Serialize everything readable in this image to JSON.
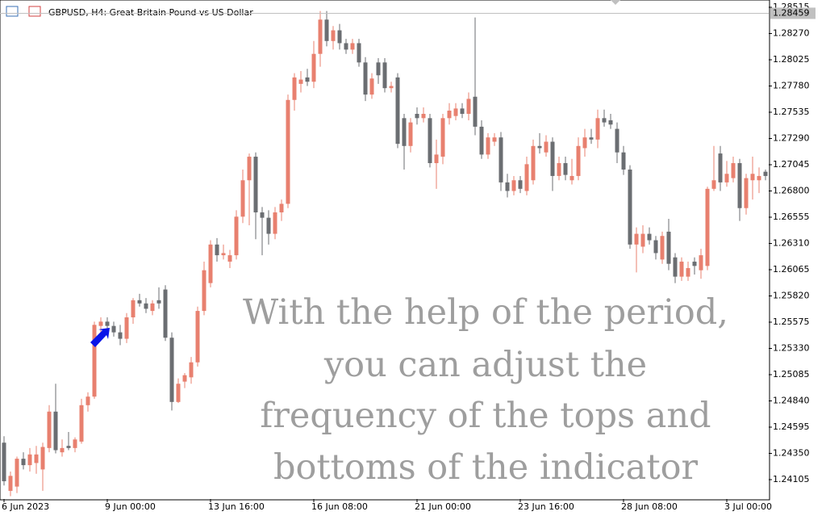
{
  "chart_data": {
    "type": "candlestick",
    "title": "GBPUSD, H4:  Great Britain Pound vs US Dollar",
    "annotation": [
      "With the help of the period,",
      "you can adjust the",
      "frequency of the tops and",
      "bottoms of the indicator"
    ],
    "last_price": 1.28459,
    "up_color": "#e8806f",
    "down_color": "#6b6e72",
    "ylim": [
      1.23924,
      1.28583
    ],
    "yticks": [
      1.28515,
      {
        "value": 1.2827,
        "label": "1.28270"
      },
      1.28025,
      {
        "value": 1.2778,
        "label": "1.27780"
      },
      1.27535,
      {
        "value": 1.2729,
        "label": "1.27290"
      },
      1.27045,
      {
        "value": 1.268,
        "label": "1.26800"
      },
      1.26555,
      {
        "value": 1.2631,
        "label": "1.26310"
      },
      1.26065,
      {
        "value": 1.2582,
        "label": "1.25820"
      },
      1.25575,
      {
        "value": 1.2533,
        "label": "1.25330"
      },
      1.25085,
      {
        "value": 1.2484,
        "label": "1.24840"
      },
      1.24595,
      {
        "value": 1.2435,
        "label": "1.24350"
      },
      1.24105
    ],
    "categories": [
      "6 Jun 2023",
      null,
      null,
      null,
      null,
      null,
      null,
      null,
      null,
      null,
      null,
      null,
      null,
      null,
      null,
      null,
      "9 Jun 00:00",
      null,
      null,
      null,
      null,
      null,
      null,
      null,
      null,
      null,
      null,
      null,
      null,
      null,
      null,
      null,
      "13 Jun 16:00",
      null,
      null,
      null,
      null,
      null,
      null,
      null,
      null,
      null,
      null,
      null,
      null,
      null,
      null,
      null,
      "16 Jun 08:00",
      null,
      null,
      null,
      null,
      null,
      null,
      null,
      null,
      null,
      null,
      null,
      null,
      null,
      null,
      null,
      "21 Jun 00:00",
      null,
      null,
      null,
      null,
      null,
      null,
      null,
      null,
      null,
      null,
      null,
      null,
      null,
      null,
      null,
      "23 Jun 16:00",
      null,
      null,
      null,
      null,
      null,
      null,
      null,
      null,
      null,
      null,
      null,
      null,
      null,
      null,
      null,
      "28 Jun 08:00",
      null,
      null,
      null,
      null,
      null,
      null,
      null,
      null,
      null,
      null,
      null,
      null,
      null,
      null,
      null,
      "3 Jul 00:00",
      null,
      null,
      null,
      null,
      null,
      null
    ],
    "open": [
      1.2445,
      1.24,
      1.2404,
      1.243,
      1.2424,
      1.2426,
      1.242,
      1.244,
      1.2474,
      1.2436,
      1.2442,
      1.244,
      1.2446,
      1.248,
      1.2488,
      1.2554,
      1.2558,
      1.2554,
      1.2548,
      1.2542,
      1.2562,
      1.2578,
      1.2575,
      1.2568,
      1.2578,
      1.2588,
      1.2543,
      1.2483,
      1.2502,
      1.2506,
      1.252,
      1.2568,
      1.2594,
      1.263,
      1.262,
      1.2614,
      1.262,
      1.2656,
      1.269,
      1.2712,
      1.266,
      1.2655,
      1.264,
      1.266,
      1.2668,
      1.2765,
      1.278,
      1.2786,
      1.2782,
      1.2808,
      1.284,
      1.282,
      1.283,
      1.2818,
      1.2812,
      1.2818,
      1.28,
      1.277,
      1.28,
      1.28,
      1.2776,
      1.2786,
      1.2748,
      1.2722,
      1.2752,
      1.2748,
      1.2748,
      1.2706,
      1.2712,
      1.2748,
      1.275,
      1.2757,
      1.2752,
      1.2768,
      1.274,
      1.2714,
      1.2726,
      1.273,
      1.2688,
      1.268,
      1.269,
      1.268,
      1.269,
      1.2722,
      1.2716,
      1.2726,
      1.2694,
      1.2706,
      1.269,
      1.2694,
      1.272,
      1.273,
      1.2728,
      1.2748,
      1.2746,
      1.2738,
      1.2716,
      1.27,
      1.263,
      1.2628,
      1.264,
      1.2634,
      1.2616,
      1.2642,
      1.2618,
      1.26,
      1.26,
      1.2614,
      1.2606,
      1.261,
      1.2682,
      1.2715,
      1.2688,
      1.2692,
      1.2706,
      1.2664,
      1.269,
      1.269,
      1.2698
    ],
    "high": [
      1.2451,
      1.2418,
      1.2432,
      1.2436,
      1.244,
      1.2442,
      1.2445,
      1.248,
      1.25,
      1.2448,
      1.2455,
      1.245,
      1.2486,
      1.2492,
      1.2558,
      1.2562,
      1.2562,
      1.2558,
      1.2555,
      1.2566,
      1.258,
      1.2584,
      1.258,
      1.2578,
      1.259,
      1.2592,
      1.2548,
      1.2505,
      1.251,
      1.2525,
      1.2572,
      1.2614,
      1.2634,
      1.2636,
      1.263,
      1.2625,
      1.2662,
      1.27,
      1.2715,
      1.2716,
      1.2665,
      1.2662,
      1.2665,
      1.2672,
      1.277,
      1.279,
      1.2792,
      1.2794,
      1.282,
      1.2848,
      1.2848,
      1.2834,
      1.2836,
      1.2822,
      1.2822,
      1.2822,
      1.2805,
      1.279,
      1.2804,
      1.2804,
      1.2782,
      1.279,
      1.2752,
      1.2748,
      1.2758,
      1.2758,
      1.2752,
      1.2728,
      1.2752,
      1.2762,
      1.2762,
      1.2762,
      1.2772,
      1.2842,
      1.2746,
      1.2734,
      1.2734,
      1.2735,
      1.2696,
      1.2694,
      1.2694,
      1.2712,
      1.2728,
      1.2734,
      1.2732,
      1.273,
      1.2712,
      1.2712,
      1.271,
      1.273,
      1.2738,
      1.2738,
      1.2756,
      1.2756,
      1.2752,
      1.2744,
      1.2722,
      1.2704,
      1.2646,
      1.2648,
      1.2646,
      1.2638,
      1.2642,
      1.2654,
      1.2622,
      1.2618,
      1.2614,
      1.2618,
      1.2626,
      1.2684,
      1.2722,
      1.2722,
      1.2708,
      1.2712,
      1.271,
      1.2696,
      1.2712,
      1.2702,
      1.27
    ],
    "low": [
      1.2405,
      1.2395,
      1.2398,
      1.242,
      1.2418,
      1.2416,
      1.24,
      1.2436,
      1.2435,
      1.2432,
      1.2438,
      1.2436,
      1.2444,
      1.2474,
      1.2486,
      1.2548,
      1.255,
      1.2544,
      1.2536,
      1.2538,
      1.2556,
      1.2572,
      1.2566,
      1.2564,
      1.257,
      1.254,
      1.2475,
      1.2482,
      1.2496,
      1.25,
      1.2516,
      1.2564,
      1.259,
      1.2614,
      1.2616,
      1.2608,
      1.2616,
      1.265,
      1.2648,
      1.2635,
      1.262,
      1.263,
      1.2635,
      1.2652,
      1.2664,
      1.2755,
      1.2772,
      1.2778,
      1.2776,
      1.2796,
      1.2815,
      1.2812,
      1.2812,
      1.2808,
      1.2808,
      1.2796,
      1.2764,
      1.2766,
      1.278,
      1.2772,
      1.2772,
      1.272,
      1.27,
      1.2716,
      1.2742,
      1.2744,
      1.2702,
      1.2682,
      1.2705,
      1.2742,
      1.2746,
      1.2748,
      1.2746,
      1.2732,
      1.271,
      1.271,
      1.2722,
      1.268,
      1.2674,
      1.2676,
      1.2678,
      1.2676,
      1.2686,
      1.2715,
      1.2712,
      1.268,
      1.269,
      1.269,
      1.2686,
      1.269,
      1.2712,
      1.2724,
      1.272,
      1.274,
      1.2738,
      1.2706,
      1.2695,
      1.2626,
      1.2604,
      1.2622,
      1.263,
      1.2616,
      1.2612,
      1.2606,
      1.2594,
      1.2596,
      1.2596,
      1.2602,
      1.2598,
      1.2606,
      1.268,
      1.268,
      1.2684,
      1.2688,
      1.2652,
      1.2658,
      1.2672,
      1.2678,
      1.269
    ],
    "close": [
      1.2409,
      1.2414,
      1.243,
      1.2424,
      1.2434,
      1.2434,
      1.2441,
      1.2474,
      1.2438,
      1.244,
      1.244,
      1.2448,
      1.248,
      1.2488,
      1.2555,
      1.2558,
      1.2554,
      1.2548,
      1.2542,
      1.2562,
      1.2578,
      1.2575,
      1.257,
      1.2575,
      1.2575,
      1.2543,
      1.2483,
      1.25,
      1.2508,
      1.252,
      1.2568,
      1.2606,
      1.263,
      1.262,
      1.2622,
      1.262,
      1.2656,
      1.269,
      1.2712,
      1.266,
      1.2655,
      1.264,
      1.266,
      1.2668,
      1.2765,
      1.2786,
      1.2784,
      1.2782,
      1.2808,
      1.284,
      1.282,
      1.283,
      1.2818,
      1.2812,
      1.2818,
      1.28,
      1.277,
      1.2785,
      1.2788,
      1.2776,
      1.2778,
      1.2724,
      1.2722,
      1.2744,
      1.2748,
      1.2752,
      1.2706,
      1.2714,
      1.2748,
      1.2755,
      1.2757,
      1.2752,
      1.2766,
      1.274,
      1.2714,
      1.273,
      1.273,
      1.2688,
      1.268,
      1.269,
      1.2682,
      1.2705,
      1.2722,
      1.272,
      1.2726,
      1.2694,
      1.2706,
      1.2695,
      1.2694,
      1.2722,
      1.273,
      1.2728,
      1.2748,
      1.2744,
      1.2742,
      1.2716,
      1.27,
      1.263,
      1.264,
      1.264,
      1.2634,
      1.2622,
      1.2638,
      1.2612,
      1.26,
      1.2614,
      1.2608,
      1.261,
      1.262,
      1.2682,
      1.269,
      1.2688,
      1.2696,
      1.2706,
      1.2664,
      1.2692,
      1.2696,
      1.2694,
      1.2694
    ]
  }
}
